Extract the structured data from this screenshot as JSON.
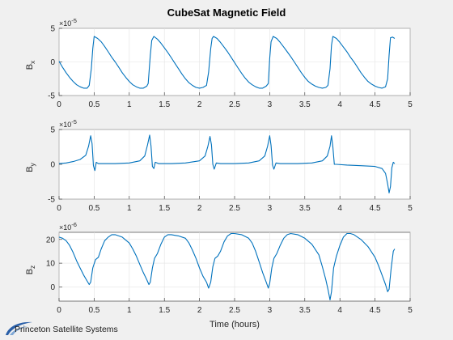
{
  "chart_data": {
    "type": "line",
    "title": "CubeSat Magnetic Field",
    "xlabel": "Time (hours)",
    "line_color": "#0072BD",
    "grid": true,
    "x_ticks": [
      "0",
      "0.5",
      "1",
      "1.5",
      "2",
      "2.5",
      "3",
      "3.5",
      "4",
      "4.5",
      "5"
    ],
    "subplots": [
      {
        "ylabel": "B",
        "ylabel_sub": "x",
        "exponent_label": "×10",
        "exponent_power": "-5",
        "ylim": [
          -5,
          5
        ],
        "yticks": [
          "-5",
          "0",
          "5"
        ],
        "xlim": [
          0,
          5
        ],
        "series": [
          {
            "x": [
              0,
              0.05,
              0.1,
              0.15,
              0.2,
              0.25,
              0.3,
              0.35,
              0.4,
              0.43,
              0.46,
              0.48,
              0.5,
              0.55,
              0.6,
              0.65,
              0.7,
              0.75,
              0.8,
              0.85,
              0.9,
              0.95,
              1.0,
              1.05,
              1.1,
              1.15,
              1.2,
              1.25,
              1.27,
              1.3,
              1.32,
              1.35,
              1.4,
              1.45,
              1.5,
              1.55,
              1.6,
              1.65,
              1.7,
              1.75,
              1.8,
              1.85,
              1.9,
              1.95,
              2.0,
              2.05,
              2.1,
              2.13,
              2.16,
              2.18,
              2.2,
              2.25,
              2.3,
              2.35,
              2.4,
              2.45,
              2.5,
              2.55,
              2.6,
              2.65,
              2.7,
              2.75,
              2.8,
              2.85,
              2.9,
              2.95,
              2.98,
              3.0,
              3.02,
              3.05,
              3.1,
              3.15,
              3.2,
              3.25,
              3.3,
              3.35,
              3.4,
              3.45,
              3.5,
              3.55,
              3.6,
              3.65,
              3.7,
              3.75,
              3.8,
              3.83,
              3.86,
              3.88,
              3.9,
              3.95,
              4.0,
              4.05,
              4.1,
              4.15,
              4.2,
              4.25,
              4.3,
              4.35,
              4.4,
              4.45,
              4.5,
              4.55,
              4.6,
              4.65,
              4.68,
              4.7,
              4.72,
              4.75,
              4.78
            ],
            "y": [
              0.1,
              -0.8,
              -1.6,
              -2.3,
              -2.9,
              -3.4,
              -3.7,
              -3.9,
              -3.9,
              -3.5,
              -1.0,
              2.0,
              3.8,
              3.5,
              3.0,
              2.3,
              1.5,
              0.7,
              0.0,
              -0.8,
              -1.6,
              -2.3,
              -2.9,
              -3.4,
              -3.7,
              -3.9,
              -3.9,
              -3.6,
              -3.2,
              1.0,
              3.2,
              3.8,
              3.4,
              2.8,
              2.1,
              1.4,
              0.6,
              -0.2,
              -1.0,
              -1.8,
              -2.5,
              -3.1,
              -3.5,
              -3.8,
              -3.9,
              -3.8,
              -3.5,
              -1.5,
              2.0,
              3.5,
              3.8,
              3.5,
              2.9,
              2.2,
              1.5,
              0.7,
              -0.1,
              -0.9,
              -1.7,
              -2.4,
              -3.0,
              -3.4,
              -3.7,
              -3.9,
              -3.9,
              -3.6,
              -3.2,
              0.5,
              3.0,
              3.8,
              3.5,
              2.9,
              2.2,
              1.5,
              0.8,
              0.0,
              -0.8,
              -1.6,
              -2.3,
              -2.9,
              -3.3,
              -3.6,
              -3.8,
              -3.9,
              -3.8,
              -3.5,
              -1.0,
              2.5,
              3.8,
              3.5,
              2.9,
              2.2,
              1.5,
              0.7,
              0.0,
              -0.8,
              -1.6,
              -2.3,
              -2.9,
              -3.3,
              -3.6,
              -3.8,
              -3.9,
              -3.7,
              -2.5,
              1.0,
              3.6,
              3.7,
              3.5
            ]
          }
        ]
      },
      {
        "ylabel": "B",
        "ylabel_sub": "y",
        "exponent_label": "×10",
        "exponent_power": "-5",
        "ylim": [
          -5,
          5
        ],
        "yticks": [
          "-5",
          "0",
          "5"
        ],
        "xlim": [
          0,
          5
        ],
        "series": [
          {
            "x": [
              0,
              0.1,
              0.2,
              0.3,
              0.38,
              0.42,
              0.45,
              0.47,
              0.49,
              0.51,
              0.53,
              0.56,
              0.6,
              0.8,
              1.0,
              1.15,
              1.22,
              1.26,
              1.29,
              1.31,
              1.33,
              1.35,
              1.37,
              1.42,
              1.6,
              1.8,
              2.0,
              2.08,
              2.12,
              2.15,
              2.17,
              2.19,
              2.21,
              2.24,
              2.3,
              2.5,
              2.7,
              2.85,
              2.93,
              2.97,
              3.0,
              3.02,
              3.04,
              3.06,
              3.09,
              3.15,
              3.4,
              3.6,
              3.75,
              3.82,
              3.86,
              3.88,
              3.9,
              3.92,
              3.95,
              4.1,
              4.3,
              4.5,
              4.6,
              4.65,
              4.68,
              4.7,
              4.72,
              4.74,
              4.76,
              4.78
            ],
            "y": [
              0.1,
              0.2,
              0.4,
              0.7,
              1.3,
              2.6,
              4.1,
              3.0,
              -0.2,
              -0.9,
              0.3,
              0.1,
              0.1,
              0.1,
              0.2,
              0.5,
              1.2,
              2.8,
              4.2,
              2.6,
              -0.3,
              -0.6,
              0.3,
              0.1,
              0.1,
              0.2,
              0.5,
              1.2,
              2.6,
              4.0,
              2.8,
              0.0,
              -0.7,
              0.2,
              0.1,
              0.1,
              0.2,
              0.5,
              1.2,
              2.6,
              4.1,
              2.7,
              -0.1,
              -0.7,
              0.2,
              0.1,
              0.1,
              0.2,
              0.5,
              1.2,
              2.6,
              4.1,
              2.5,
              0.0,
              0.0,
              -0.1,
              -0.2,
              -0.3,
              -0.6,
              -1.3,
              -2.8,
              -4.1,
              -3.2,
              -0.5,
              0.3,
              0.1
            ]
          }
        ]
      },
      {
        "ylabel": "B",
        "ylabel_sub": "z",
        "exponent_label": "×10",
        "exponent_power": "-6",
        "ylim": [
          -6,
          23
        ],
        "yticks": [
          "0",
          "10",
          "20"
        ],
        "xlim": [
          0,
          5
        ],
        "series": [
          {
            "x": [
              0,
              0.05,
              0.1,
              0.15,
              0.2,
              0.25,
              0.3,
              0.35,
              0.4,
              0.43,
              0.45,
              0.48,
              0.52,
              0.56,
              0.6,
              0.65,
              0.7,
              0.75,
              0.8,
              0.9,
              1.0,
              1.05,
              1.1,
              1.15,
              1.2,
              1.25,
              1.28,
              1.3,
              1.33,
              1.36,
              1.4,
              1.45,
              1.5,
              1.55,
              1.6,
              1.7,
              1.8,
              1.85,
              1.9,
              1.95,
              2.0,
              2.05,
              2.1,
              2.13,
              2.16,
              2.19,
              2.22,
              2.26,
              2.3,
              2.35,
              2.4,
              2.45,
              2.5,
              2.6,
              2.7,
              2.75,
              2.8,
              2.85,
              2.9,
              2.95,
              2.98,
              3.0,
              3.03,
              3.06,
              3.1,
              3.15,
              3.2,
              3.25,
              3.3,
              3.4,
              3.5,
              3.6,
              3.7,
              3.75,
              3.8,
              3.83,
              3.86,
              3.88,
              3.91,
              3.95,
              4.0,
              4.05,
              4.1,
              4.15,
              4.2,
              4.3,
              4.4,
              4.5,
              4.55,
              4.6,
              4.65,
              4.68,
              4.7,
              4.73,
              4.76,
              4.78
            ],
            "y": [
              21.0,
              20.5,
              19.5,
              17.5,
              14.5,
              11.0,
              8.0,
              5.0,
              2.5,
              1.0,
              2.0,
              8.0,
              11.5,
              12.5,
              16.0,
              19.5,
              21.0,
              22.0,
              22.0,
              21.0,
              18.5,
              16.0,
              13.0,
              9.5,
              6.0,
              3.0,
              1.0,
              2.0,
              8.0,
              12.0,
              14.0,
              18.0,
              21.0,
              22.0,
              22.0,
              21.5,
              20.5,
              18.5,
              15.5,
              12.0,
              8.0,
              4.5,
              2.0,
              -0.5,
              2.0,
              8.5,
              12.0,
              13.0,
              15.0,
              19.0,
              21.5,
              22.5,
              22.5,
              22.0,
              20.5,
              18.5,
              15.0,
              10.5,
              6.0,
              2.0,
              -0.5,
              1.5,
              8.0,
              12.0,
              14.0,
              17.5,
              20.5,
              22.0,
              22.5,
              22.0,
              20.5,
              18.0,
              13.5,
              8.5,
              3.0,
              -1.0,
              -5.5,
              -2.0,
              8.0,
              13.0,
              17.5,
              21.0,
              22.5,
              22.5,
              22.0,
              20.0,
              17.0,
              12.5,
              9.0,
              5.0,
              1.0,
              -2.0,
              -1.0,
              8.0,
              15.0,
              16.0
            ]
          }
        ]
      }
    ]
  },
  "logo": {
    "text": "Princeton Satellite Systems"
  }
}
